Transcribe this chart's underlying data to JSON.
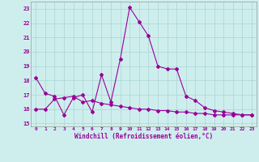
{
  "xlabel": "Windchill (Refroidissement éolien,°C)",
  "background_color": "#ceeeed",
  "grid_color": "#aad4d4",
  "line_color": "#990099",
  "line1_x": [
    0,
    1,
    2,
    3,
    4,
    5,
    6,
    7,
    8,
    9,
    10,
    11,
    12,
    13,
    14,
    15,
    16,
    17,
    18,
    19,
    20,
    21,
    22,
    23
  ],
  "line1_y": [
    18.2,
    17.1,
    16.9,
    15.6,
    16.8,
    17.0,
    15.8,
    18.4,
    16.5,
    19.5,
    23.1,
    22.1,
    21.1,
    19.0,
    18.8,
    18.8,
    16.9,
    16.6,
    16.1,
    15.9,
    15.8,
    15.7,
    15.6,
    15.6
  ],
  "line2_x": [
    0,
    1,
    2,
    3,
    4,
    5,
    6,
    7,
    8,
    9,
    10,
    11,
    12,
    13,
    14,
    15,
    16,
    17,
    18,
    19,
    20,
    21,
    22,
    23
  ],
  "line2_y": [
    16.0,
    16.0,
    16.7,
    16.8,
    16.9,
    16.5,
    16.6,
    16.4,
    16.3,
    16.2,
    16.1,
    16.0,
    16.0,
    15.9,
    15.9,
    15.8,
    15.8,
    15.7,
    15.7,
    15.6,
    15.6,
    15.6,
    15.6,
    15.6
  ],
  "ylim": [
    14.8,
    23.5
  ],
  "yticks": [
    15,
    16,
    17,
    18,
    19,
    20,
    21,
    22,
    23
  ],
  "xticks": [
    0,
    1,
    2,
    3,
    4,
    5,
    6,
    7,
    8,
    9,
    10,
    11,
    12,
    13,
    14,
    15,
    16,
    17,
    18,
    19,
    20,
    21,
    22,
    23
  ],
  "marker": "D",
  "markersize": 2.0,
  "linewidth": 0.8
}
